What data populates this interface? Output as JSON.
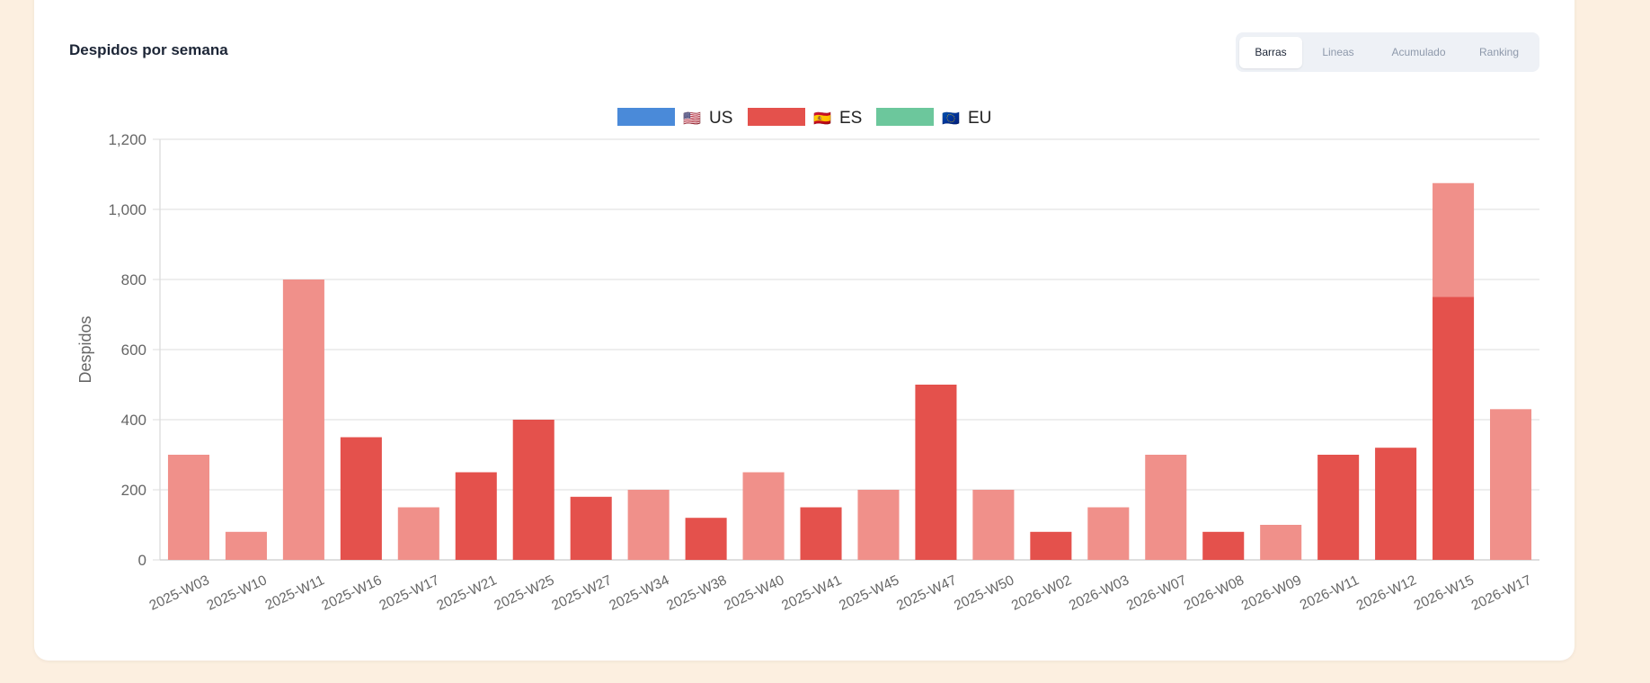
{
  "card": {
    "title": "Despidos por semana"
  },
  "tabs": [
    {
      "label": "Barras",
      "active": true
    },
    {
      "label": "Lineas",
      "active": false
    },
    {
      "label": "Acumulado",
      "active": false
    },
    {
      "label": "Ranking",
      "active": false
    }
  ],
  "colors": {
    "us": "#4a8ad9",
    "es": "#e4514c",
    "es_light": "#f0908a",
    "eu": "#6cc79c",
    "grid": "#e4e4e4",
    "axis_text": "#666666"
  },
  "chart_data": {
    "type": "bar",
    "stacked": true,
    "legend_position": "top",
    "ylabel": "Despidos",
    "ylim": [
      0,
      1200
    ],
    "yticks": [
      "0",
      "200",
      "400",
      "600",
      "800",
      "1,000",
      "1,200"
    ],
    "grid": true,
    "legend": [
      {
        "flag": "🇺🇸",
        "label": "US",
        "color": "#4a8ad9"
      },
      {
        "flag": "🇪🇸",
        "label": "ES",
        "color": "#e4514c"
      },
      {
        "flag": "🇪🇺",
        "label": "EU",
        "color": "#6cc79c"
      }
    ],
    "categories": [
      "2025-W03",
      "2025-W10",
      "2025-W11",
      "2025-W16",
      "2025-W17",
      "2025-W21",
      "2025-W25",
      "2025-W27",
      "2025-W34",
      "2025-W38",
      "2025-W40",
      "2025-W41",
      "2025-W45",
      "2025-W47",
      "2025-W50",
      "2026-W02",
      "2026-W03",
      "2026-W07",
      "2026-W08",
      "2026-W09",
      "2026-W11",
      "2026-W12",
      "2026-W15",
      "2026-W17"
    ],
    "series": [
      {
        "values": [
          0,
          0,
          0,
          350,
          0,
          250,
          400,
          180,
          0,
          120,
          0,
          150,
          0,
          500,
          0,
          80,
          0,
          0,
          80,
          0,
          300,
          320,
          750,
          0
        ],
        "color": "#e4514c"
      },
      {
        "values": [
          300,
          80,
          800,
          0,
          150,
          0,
          0,
          0,
          200,
          0,
          250,
          0,
          200,
          0,
          200,
          0,
          150,
          300,
          0,
          100,
          0,
          0,
          325,
          430
        ],
        "color": "#f0908a"
      }
    ]
  }
}
